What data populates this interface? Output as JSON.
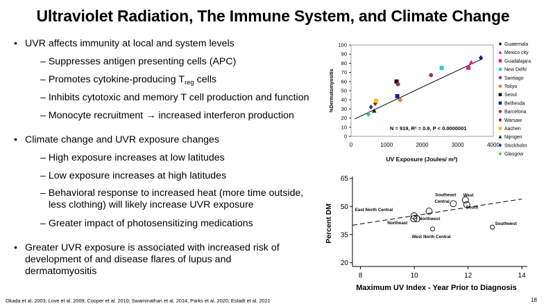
{
  "slide": {
    "title": "Ultraviolet Radiation, The Immune System, and Climate Change",
    "page_number": "18",
    "references": "Okada et al. 2003; Love et al. 2009; Cooper et al. 2010; Swaminathan et al. 2014; Parks et al. 2020; Estadt et al. 2021"
  },
  "bullets": {
    "b1": "UVR affects immunity at local and system levels",
    "b1_1": "Suppresses antigen presenting cells (APC)",
    "b1_2_pre": "Promotes cytokine-producing T",
    "b1_2_sub": "reg",
    "b1_2_post": " cells",
    "b1_3": "Inhibits cytotoxic and memory T cell production and function",
    "b1_4": "Monocyte recruitment → increased interferon production",
    "b2": "Climate change and UVR exposure changes",
    "b2_1": "High exposure increases at low latitudes",
    "b2_2": "Low exposure increases at high latitudes",
    "b2_3a": "Behavioral response to increased heat (more time outside,",
    "b2_3b": "less clothing) will likely increase UVR exposure",
    "b2_4": "Greater impact of photosensitizing medications",
    "b3a": "Greater UVR exposure is associated with increased risk of",
    "b3b": "development of and disease flares of lupus and",
    "b3c": "dermatomyositis",
    "bullet_char": "•",
    "dash_char": "–"
  },
  "chart_data": [
    {
      "type": "scatter",
      "title": "",
      "xlabel": "UV Exposure (Joules/ m²)",
      "ylabel": "%Dermatomyositis",
      "xlim": [
        0,
        4000
      ],
      "ylim": [
        0,
        100
      ],
      "x_ticks": [
        "0",
        "1000",
        "2000",
        "3000",
        "4000"
      ],
      "y_ticks": [
        "0",
        "10",
        "20",
        "30",
        "40",
        "50",
        "60",
        "70",
        "80",
        "90",
        "100"
      ],
      "annotation": "N = 919, R² = 0.9, P < 0.0000001",
      "trend_line": {
        "x": [
          100,
          3700
        ],
        "y": [
          19,
          85
        ]
      },
      "legend_position": "right",
      "series": [
        {
          "name": "Guatemala",
          "marker": "diamond",
          "color": "#1a1a7a",
          "x": [
            3650
          ],
          "y": [
            86
          ]
        },
        {
          "name": "Mexico city",
          "marker": "triangle",
          "color": "#e0218a",
          "x": [
            3380
          ],
          "y": [
            81
          ]
        },
        {
          "name": "Guadalajara",
          "marker": "square",
          "color": "#e0218a",
          "x": [
            3300
          ],
          "y": [
            75
          ]
        },
        {
          "name": "New Delhi",
          "marker": "square",
          "color": "#33ccee",
          "x": [
            2550
          ],
          "y": [
            75
          ]
        },
        {
          "name": "Santiago",
          "marker": "circle",
          "color": "#a0306a",
          "x": [
            2250
          ],
          "y": [
            67
          ]
        },
        {
          "name": "Tokyo",
          "marker": "circle",
          "color": "#d9823b",
          "x": [
            1380
          ],
          "y": [
            40
          ]
        },
        {
          "name": "Seoul",
          "marker": "square",
          "color": "#111111",
          "x": [
            1280
          ],
          "y": [
            60
          ]
        },
        {
          "name": "Bethesda",
          "marker": "square",
          "color": "#1a1aaa",
          "x": [
            1300
          ],
          "y": [
            44
          ]
        },
        {
          "name": "Barcelona",
          "marker": "circle",
          "color": "#a03060",
          "x": [
            1320
          ],
          "y": [
            57
          ]
        },
        {
          "name": "Warsaw",
          "marker": "diamond",
          "color": "#8b1a1a",
          "x": [
            680
          ],
          "y": [
            36
          ]
        },
        {
          "name": "Aachen",
          "marker": "square",
          "color": "#f0c020",
          "x": [
            700
          ],
          "y": [
            39
          ]
        },
        {
          "name": "Nijmgen",
          "marker": "triangle",
          "color": "#222222",
          "x": [
            650
          ],
          "y": [
            28
          ]
        },
        {
          "name": "Stockholm",
          "marker": "diamond",
          "color": "#1a3aaa",
          "x": [
            560
          ],
          "y": [
            32
          ]
        },
        {
          "name": "Glasgow",
          "marker": "diamond",
          "color": "#33cc66",
          "x": [
            490
          ],
          "y": [
            24
          ]
        }
      ]
    },
    {
      "type": "scatter",
      "title": "",
      "xlabel": "Maximum UV Index - Year Prior to Diagnosis",
      "ylabel": "Percent DM",
      "xlim": [
        7.7,
        14.2
      ],
      "ylim": [
        18,
        66
      ],
      "x_ticks": [
        "8",
        "10",
        "12",
        "14"
      ],
      "y_ticks": [
        "20",
        "35",
        "50",
        "65"
      ],
      "trend_line": {
        "x": [
          7.7,
          14.0
        ],
        "y": [
          40,
          54
        ]
      },
      "points": [
        {
          "label": "East North Central",
          "x": 9.99,
          "y": 45.0
        },
        {
          "label": "Central",
          "x": 10.55,
          "y": 47.5
        },
        {
          "label": "Northeast",
          "x": 9.98,
          "y": 43.5
        },
        {
          "label": "Northwest",
          "x": 10.1,
          "y": 43.5
        },
        {
          "label": "West North Central",
          "x": 10.68,
          "y": 38.0
        },
        {
          "label": "Southeast",
          "x": 11.45,
          "y": 51.5
        },
        {
          "label": "West",
          "x": 11.9,
          "y": 53.5
        },
        {
          "label": "South",
          "x": 11.95,
          "y": 51.0
        },
        {
          "label": "Southwest",
          "x": 12.9,
          "y": 39.0
        }
      ]
    }
  ]
}
